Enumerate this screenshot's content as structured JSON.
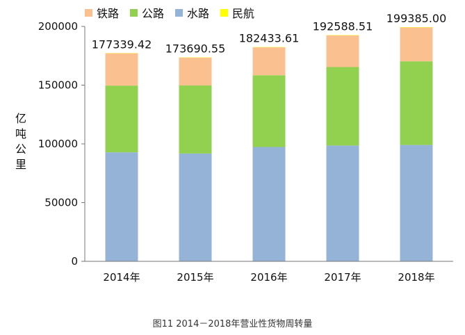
{
  "chart_data": {
    "type": "bar",
    "stacked": true,
    "categories": [
      "2014年",
      "2015年",
      "2016年",
      "2017年",
      "2018年"
    ],
    "series": [
      {
        "name": "水路",
        "color": "#95b3d7",
        "values": [
          92775,
          91772,
          97339,
          98611,
          99053
        ]
      },
      {
        "name": "公路",
        "color": "#92d050",
        "values": [
          56847,
          57956,
          61080,
          66771,
          71249
        ]
      },
      {
        "name": "铁路",
        "color": "#fac090",
        "values": [
          27530,
          23754,
          23792,
          26962,
          28821
        ]
      },
      {
        "name": "民航",
        "color": "#ffff00",
        "values": [
          187.42,
          208.55,
          222.61,
          244.51,
          262.0
        ]
      }
    ],
    "totals": [
      "177339.42",
      "173690.55",
      "182433.61",
      "192588.51",
      "199385.00"
    ],
    "total_values": [
      177339.42,
      173690.55,
      182433.61,
      192588.51,
      199385.0
    ],
    "legend_order": [
      "铁路",
      "公路",
      "水路",
      "民航"
    ],
    "ylabel": "亿吨公里",
    "ylim": [
      0,
      200000
    ],
    "yticks": [
      "0",
      "50000",
      "100000",
      "150000",
      "200000"
    ],
    "ytick_values": [
      0,
      50000,
      100000,
      150000,
      200000
    ],
    "legend_position": "top-left",
    "caption": "图11 2014－2018年营业性货物周转量"
  }
}
